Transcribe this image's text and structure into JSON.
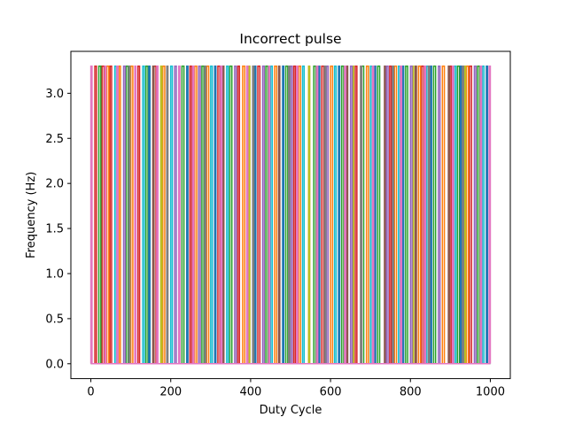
{
  "chart_data": {
    "type": "line",
    "title": "Incorrect pulse",
    "xlabel": "Duty Cycle",
    "ylabel": "Frequency (Hz)",
    "xlim": [
      -50,
      1050
    ],
    "ylim": [
      -0.165,
      3.465
    ],
    "xticks": [
      0,
      200,
      400,
      600,
      800,
      1000
    ],
    "xtick_labels": [
      "0",
      "200",
      "400",
      "600",
      "800",
      "1000"
    ],
    "yticks": [
      0.0,
      0.5,
      1.0,
      1.5,
      2.0,
      2.5,
      3.0
    ],
    "ytick_labels": [
      "0.0",
      "0.5",
      "1.0",
      "1.5",
      "2.0",
      "2.5",
      "3.0"
    ],
    "grid": false,
    "legend": "none",
    "high_value": 3.3,
    "low_value": 0.0,
    "palette": [
      "#1f77b4",
      "#ff7f0e",
      "#2ca02c",
      "#d62728",
      "#9467bd",
      "#8c564b",
      "#e377c2",
      "#7f7f7f",
      "#bcbd22",
      "#17becf"
    ],
    "series": [
      {
        "color": "#d62728",
        "edges": [
          10,
          14,
          28,
          33,
          48,
          52,
          118,
          122,
          158,
          163,
          248,
          252,
          318,
          323,
          368,
          372,
          418,
          423,
          508,
          512,
          578,
          583,
          662,
          666,
          748,
          752,
          828,
          833,
          898,
          902,
          948,
          953
        ]
      },
      {
        "color": "#2ca02c",
        "edges": [
          20,
          25,
          88,
          93,
          138,
          143,
          228,
          233,
          278,
          283,
          348,
          353,
          438,
          443,
          488,
          493,
          558,
          563,
          628,
          633,
          678,
          683,
          718,
          723,
          788,
          793,
          858,
          863,
          918,
          923,
          968,
          973
        ]
      },
      {
        "color": "#ff7f0e",
        "edges": [
          40,
          45,
          70,
          74,
          100,
          105,
          180,
          185,
          260,
          265,
          290,
          295,
          380,
          385,
          460,
          465,
          520,
          525,
          600,
          605,
          690,
          695,
          760,
          765,
          820,
          825,
          880,
          885,
          940,
          945
        ]
      },
      {
        "color": "#17becf",
        "edges": [
          60,
          64,
          130,
          134,
          200,
          204,
          300,
          304,
          340,
          344,
          450,
          454,
          530,
          534,
          610,
          614,
          700,
          704,
          770,
          774,
          840,
          844,
          910,
          914,
          980,
          984
        ]
      },
      {
        "color": "#8c564b",
        "edges": [
          155,
          158,
          330,
          333,
          470,
          473,
          640,
          643,
          735,
          738,
          812,
          815,
          895,
          898
        ]
      },
      {
        "color": "#bcbd22",
        "edges": [
          175,
          178,
          395,
          398,
          545,
          548,
          655,
          658,
          805,
          808,
          935,
          938
        ]
      },
      {
        "color": "#9467bd",
        "edges": [
          82,
          86,
          210,
          214,
          270,
          274,
          360,
          364,
          430,
          434,
          500,
          504,
          590,
          594,
          650,
          654,
          740,
          744,
          800,
          804,
          870,
          874,
          960,
          964
        ]
      },
      {
        "color": "#1f77b4",
        "edges": [
          145,
          148,
          240,
          243,
          310,
          313,
          410,
          413,
          480,
          483,
          570,
          573,
          620,
          623,
          710,
          713,
          780,
          783,
          850,
          853,
          925,
          928,
          990,
          993
        ]
      },
      {
        "color": "#7f7f7f",
        "edges": [
          95,
          98,
          190,
          193,
          285,
          288,
          405,
          408,
          495,
          498,
          585,
          588,
          675,
          678,
          755,
          758,
          845,
          848,
          930,
          933
        ]
      },
      {
        "color": "#e377c2",
        "edges": [
          0,
          3,
          35,
          38,
          65,
          68,
          110,
          113,
          165,
          168,
          220,
          223,
          255,
          258,
          325,
          328,
          390,
          393,
          445,
          448,
          515,
          518,
          565,
          568,
          635,
          638,
          705,
          708,
          775,
          778,
          835,
          838,
          905,
          908,
          975,
          978,
          997,
          1000
        ]
      }
    ]
  }
}
